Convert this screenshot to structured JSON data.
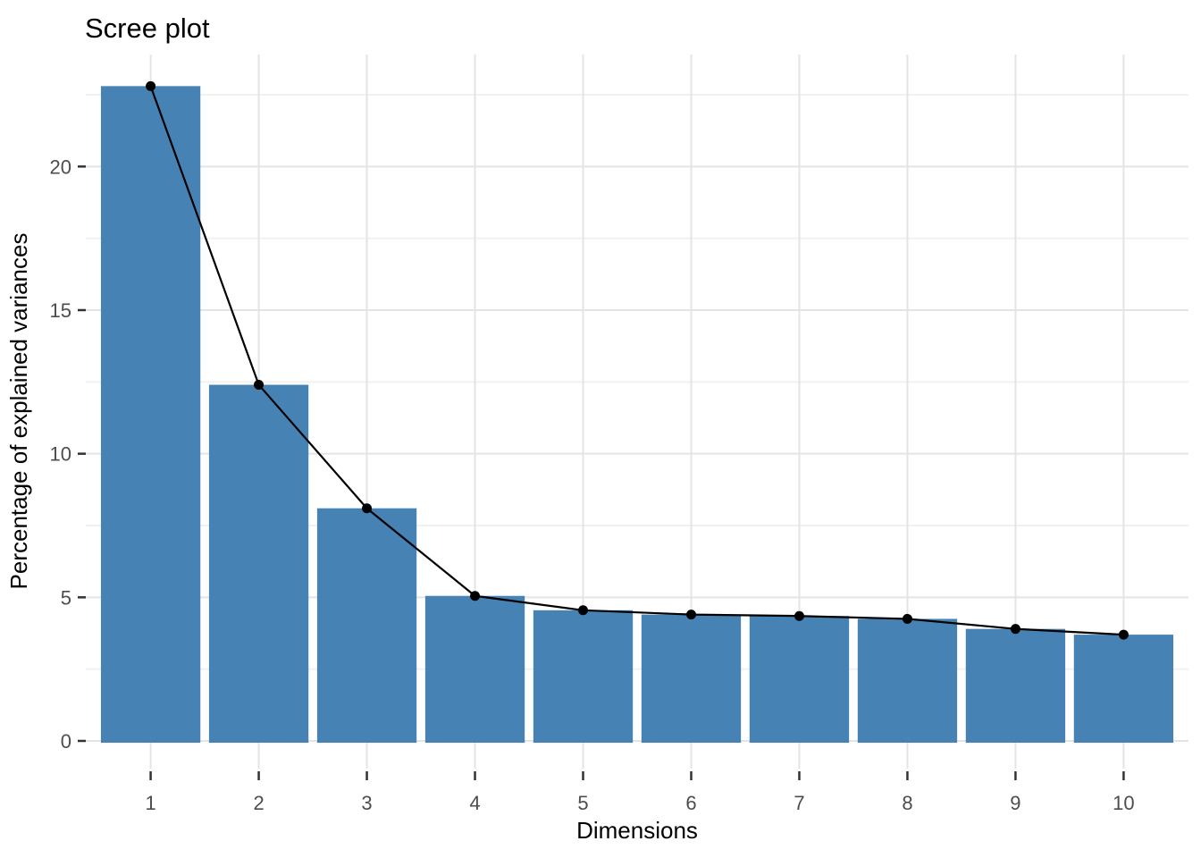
{
  "chart": {
    "title": "Scree plot",
    "xlabel": "Dimensions",
    "ylabel": "Percentage of explained variances"
  },
  "chart_data": {
    "type": "bar",
    "overlay": "line-with-points",
    "title": "Scree plot",
    "xlabel": "Dimensions",
    "ylabel": "Percentage of explained variances",
    "categories": [
      "1",
      "2",
      "3",
      "4",
      "5",
      "6",
      "7",
      "8",
      "9",
      "10"
    ],
    "series": [
      {
        "name": "Percentage of explained variances",
        "values": [
          22.8,
          12.4,
          8.1,
          5.05,
          4.55,
          4.4,
          4.35,
          4.25,
          3.9,
          3.7
        ]
      }
    ],
    "ylim": [
      0,
      23.9
    ],
    "yticks": [
      0,
      5,
      10,
      15,
      20
    ],
    "yticks_minor": [
      2.5,
      7.5,
      12.5,
      17.5,
      22.5
    ],
    "grid": "major-and-minor",
    "legend": "none",
    "colors": {
      "bar_fill": "#4682B4",
      "line": "#000000",
      "point": "#000000",
      "grid_major": "#E4E4E4",
      "grid_minor": "#F1F1F1",
      "axis_tick": "#333333",
      "tick_label": "#4D4D4D",
      "axis_title": "#000000",
      "plot_title": "#000000",
      "background": "#FFFFFF"
    }
  }
}
